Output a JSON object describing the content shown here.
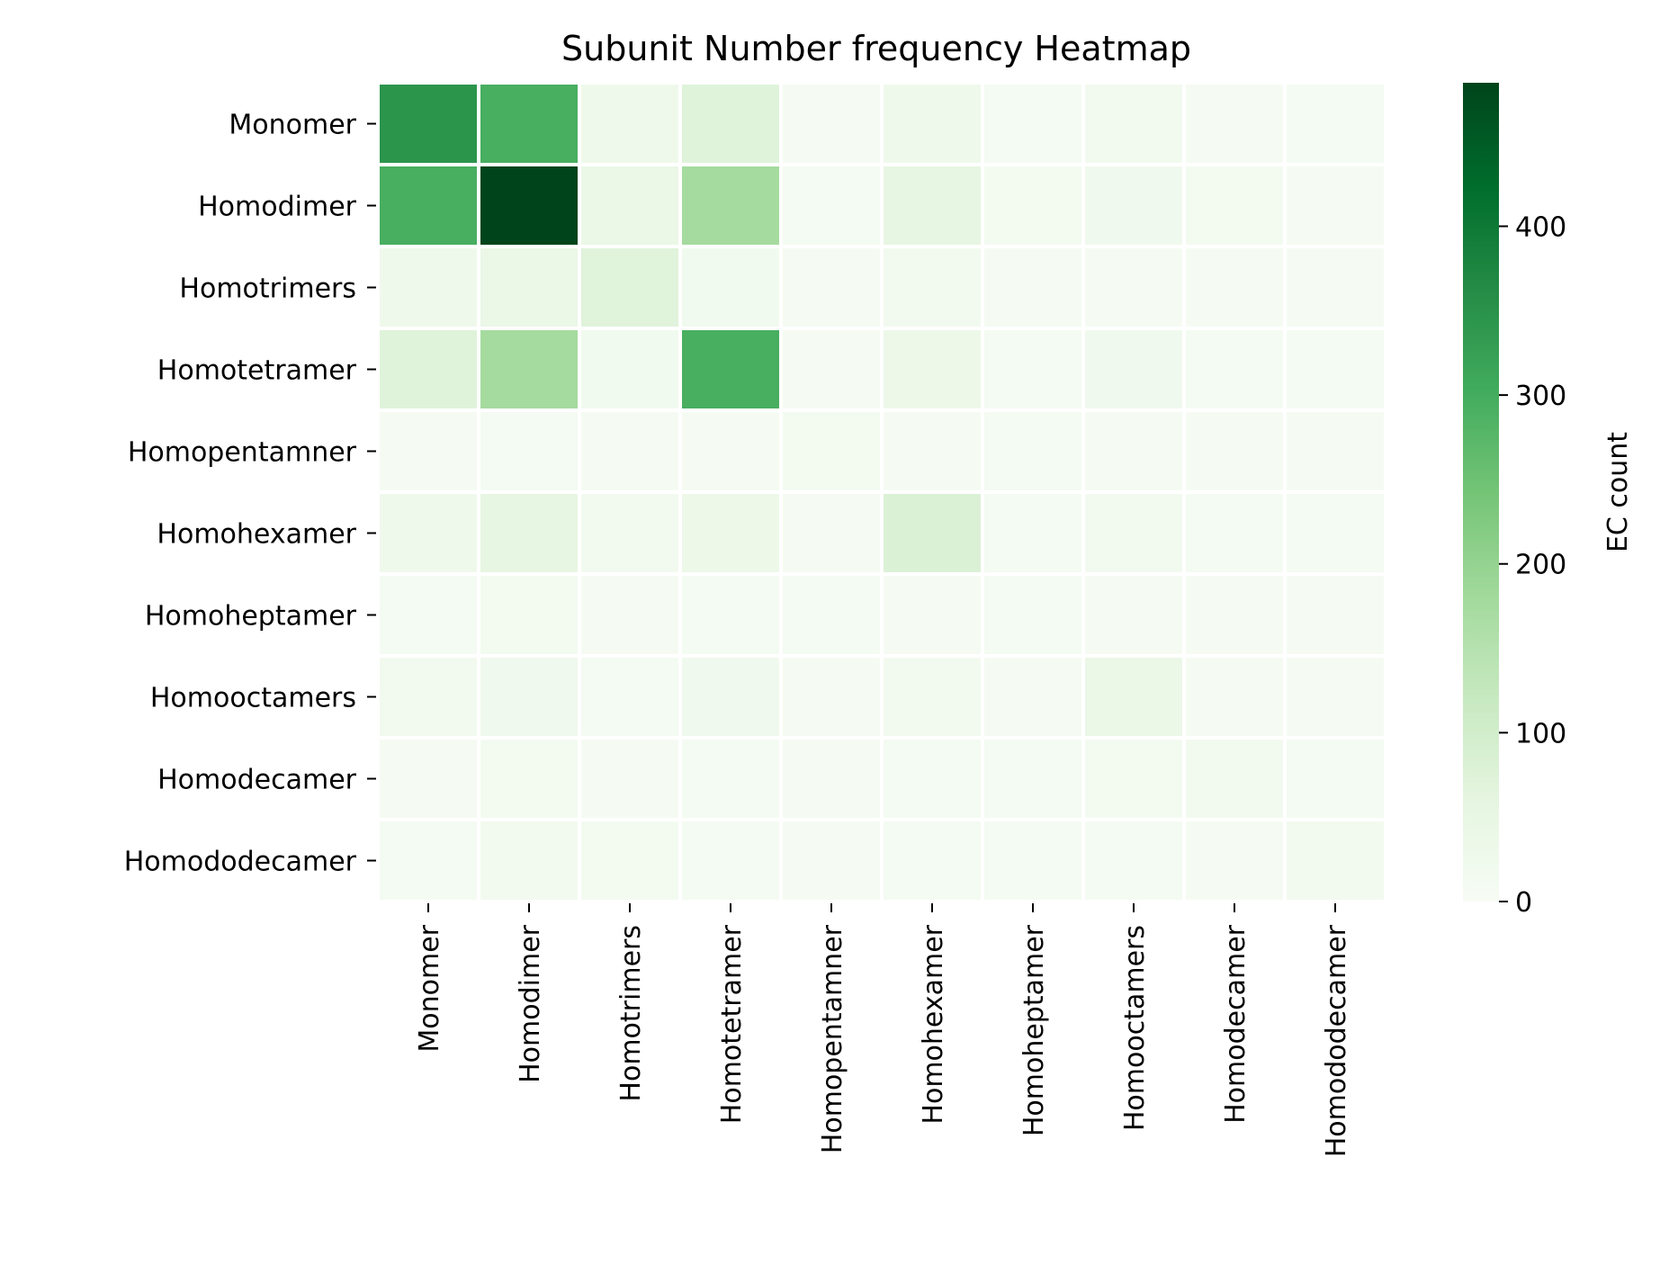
{
  "chart_data": {
    "type": "heatmap",
    "title": "Subunit Number frequency Heatmap",
    "row_labels": [
      "Monomer",
      "Homodimer",
      "Homotrimers",
      "Homotetramer",
      "Homopentamner",
      "Homohexamer",
      "Homoheptamer",
      "Homooctamers",
      "Homodecamer",
      "Homododecamer"
    ],
    "col_labels": [
      "Monomer",
      "Homodimer",
      "Homotrimers",
      "Homotetramer",
      "Homopentamner",
      "Homohexamer",
      "Homoheptamer",
      "Homooctamers",
      "Homodecamer",
      "Homododecamer"
    ],
    "values": [
      [
        345,
        295,
        28,
        72,
        8,
        28,
        10,
        16,
        8,
        10
      ],
      [
        295,
        485,
        40,
        175,
        10,
        55,
        12,
        22,
        12,
        8
      ],
      [
        28,
        40,
        70,
        20,
        8,
        16,
        8,
        8,
        6,
        6
      ],
      [
        72,
        175,
        20,
        295,
        8,
        35,
        10,
        22,
        10,
        10
      ],
      [
        8,
        10,
        8,
        8,
        12,
        8,
        10,
        8,
        8,
        6
      ],
      [
        28,
        55,
        16,
        35,
        8,
        80,
        10,
        16,
        10,
        10
      ],
      [
        10,
        12,
        8,
        10,
        10,
        8,
        10,
        8,
        6,
        6
      ],
      [
        16,
        22,
        10,
        22,
        8,
        18,
        8,
        40,
        8,
        8
      ],
      [
        8,
        12,
        6,
        10,
        8,
        10,
        10,
        12,
        18,
        10
      ],
      [
        10,
        16,
        12,
        10,
        8,
        10,
        10,
        10,
        8,
        16
      ]
    ],
    "colorbar": {
      "label": "EC count",
      "ticks": [
        0,
        100,
        200,
        300,
        400
      ],
      "range": [
        0,
        485
      ],
      "colormap": "Greens",
      "stops": [
        "#f7fcf5",
        "#e5f5e0",
        "#c7e9c0",
        "#a1d99b",
        "#74c476",
        "#41ab5d",
        "#238b45",
        "#006d2c",
        "#00441b"
      ]
    },
    "grid_lines_color": "#ffffff"
  }
}
